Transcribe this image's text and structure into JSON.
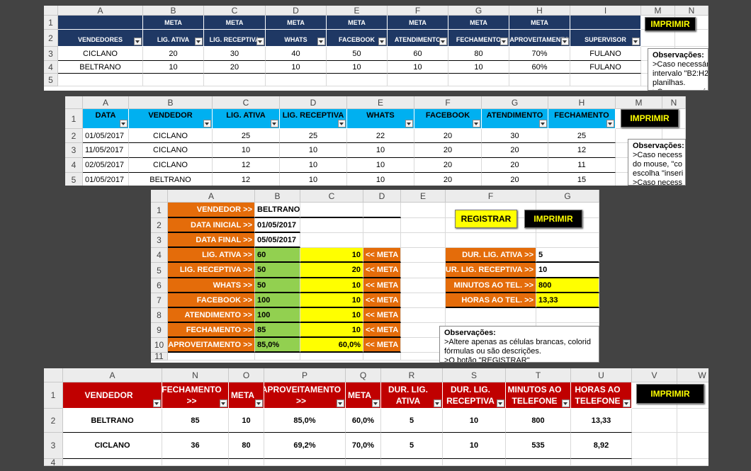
{
  "panels": [
    {
      "columns": [
        "A",
        "B",
        "C",
        "D",
        "E",
        "F",
        "G",
        "H",
        "I",
        "M",
        "N"
      ],
      "rows": [
        "1",
        "2",
        "3",
        "4",
        "5"
      ],
      "cells": [
        [
          null,
          "META",
          "META",
          "META",
          "META",
          "META",
          "META",
          "META",
          null,
          null,
          null
        ],
        [
          "VENDEDORES",
          "LIG. ATIVA",
          "LIG. RECEPTIVA",
          "WHATS",
          "FACEBOOK",
          "ATENDIMENTO",
          "FECHAMENTO",
          "APROVEITAMENTO",
          "SUPERVISOR",
          null,
          null
        ],
        [
          "CICLANO",
          "20",
          "30",
          "40",
          "50",
          "60",
          "80",
          "70%",
          "FULANO",
          null,
          null
        ],
        [
          "BELTRANO",
          "10",
          "20",
          "10",
          "10",
          "10",
          "10",
          "60%",
          "FULANO",
          null,
          null
        ],
        [
          null,
          null,
          null,
          null,
          null,
          null,
          null,
          null,
          null,
          null,
          null
        ]
      ],
      "buttons": [
        "IMPRIMIR"
      ],
      "notes": [
        "Observações:",
        ">Caso necessári",
        "intervalo \"B2:H2",
        "planilhas.",
        ">Caso necessári"
      ]
    },
    {
      "columns": [
        "A",
        "B",
        "C",
        "D",
        "E",
        "F",
        "G",
        "H",
        "M",
        "N"
      ],
      "rows": [
        "1",
        "2",
        "3",
        "4",
        "5"
      ],
      "cells": [
        [
          "DATA",
          "VENDEDOR",
          "LIG. ATIVA",
          "LIG. RECEPTIVA",
          "WHATS",
          "FACEBOOK",
          "ATENDIMENTO",
          "FECHAMENTO",
          null,
          null
        ],
        [
          "01/05/2017",
          "CICLANO",
          "25",
          "25",
          "22",
          "20",
          "30",
          "25",
          null,
          null
        ],
        [
          "11/05/2017",
          "CICLANO",
          "10",
          "10",
          "10",
          "20",
          "20",
          "12",
          null,
          null
        ],
        [
          "02/05/2017",
          "CICLANO",
          "12",
          "10",
          "10",
          "20",
          "20",
          "11",
          null,
          null
        ],
        [
          "01/05/2017",
          "BELTRANO",
          "12",
          "10",
          "10",
          "20",
          "20",
          "15",
          null,
          null
        ]
      ],
      "buttons": [
        "IMPRIMIR"
      ],
      "notes": [
        "Observações:",
        ">Caso necess",
        "do mouse, \"co",
        "escolha \"inseri",
        ">Caso necess"
      ]
    },
    {
      "columns": [
        "A",
        "B",
        "C",
        "D",
        "E",
        "F",
        "G"
      ],
      "rows": [
        "1",
        "2",
        "3",
        "4",
        "5",
        "6",
        "7",
        "8",
        "9",
        "10",
        "11"
      ],
      "cells": [
        [
          "VENDEDOR >>",
          "BELTRANO",
          null,
          null,
          null,
          null,
          null
        ],
        [
          "DATA INICIAL >>",
          "01/05/2017",
          null,
          null,
          null,
          null,
          null
        ],
        [
          "DATA FINAL >>",
          "05/05/2017",
          null,
          null,
          null,
          null,
          null
        ],
        [
          "LIG. ATIVA >>",
          "60",
          "10",
          "<< META",
          null,
          "DUR. LIG. ATIVA >>",
          "5"
        ],
        [
          "LIG. RECEPTIVA >>",
          "50",
          "20",
          "<< META",
          null,
          "DUR. LIG. RECEPTIVA >>",
          "10"
        ],
        [
          "WHATS >>",
          "50",
          "10",
          "<< META",
          null,
          "MINUTOS AO TEL. >>",
          "800"
        ],
        [
          "FACEBOOK >>",
          "100",
          "10",
          "<< META",
          null,
          "HORAS AO TEL. >>",
          "13,33"
        ],
        [
          "ATENDIMENTO >>",
          "100",
          "10",
          "<< META",
          null,
          null,
          null
        ],
        [
          "FECHAMENTO >>",
          "85",
          "10",
          "<< META",
          null,
          null,
          null
        ],
        [
          "APROVEITAMENTO >>",
          "85,0%",
          "60,0%",
          "<< META",
          null,
          null,
          null
        ],
        [
          null,
          null,
          null,
          null,
          null,
          null,
          null
        ]
      ],
      "buttons": [
        "REGISTRAR",
        "IMPRIMIR"
      ],
      "notes": [
        "Observações:",
        ">Altere apenas as células brancas, colorid",
        "fórmulas ou são descrições.",
        ">O botão \"REGISTRAR\""
      ]
    },
    {
      "columns": [
        "A",
        "N",
        "O",
        "P",
        "Q",
        "R",
        "S",
        "T",
        "U",
        "V",
        "W"
      ],
      "rows": [
        "1",
        "2",
        "3",
        "4"
      ],
      "cells": [
        [
          "VENDEDOR",
          "FECHAMENTO >>",
          "META",
          "APROVEITAMENTO >>",
          "META",
          "DUR. LIG. ATIVA",
          "DUR. LIG. RECEPTIVA",
          "MINUTOS AO TELEFONE",
          "HORAS AO TELEFONE",
          null,
          null
        ],
        [
          "BELTRANO",
          "85",
          "10",
          "85,0%",
          "60,0%",
          "5",
          "10",
          "800",
          "13,33",
          null,
          null
        ],
        [
          "CICLANO",
          "36",
          "80",
          "69,2%",
          "70,0%",
          "5",
          "10",
          "535",
          "8,92",
          null,
          null
        ],
        [
          null,
          null,
          null,
          null,
          null,
          null,
          null,
          null,
          null,
          null,
          null
        ]
      ],
      "buttons": [
        "IMPRIMIR"
      ],
      "notes": []
    }
  ]
}
